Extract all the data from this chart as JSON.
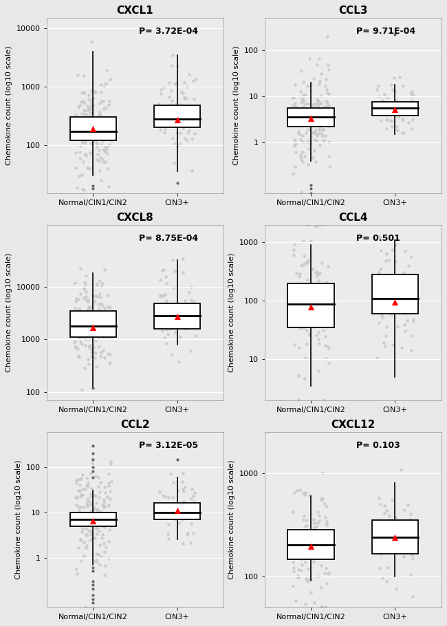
{
  "panels": [
    {
      "title": "CXCL1",
      "pvalue": "P= 3.72E-04",
      "ylim": [
        15,
        15000
      ],
      "yticks": [
        100,
        1000,
        10000
      ],
      "ytick_labels": [
        "100",
        "1000",
        "10000"
      ],
      "group1": {
        "median": 170,
        "q1": 120,
        "q3": 300,
        "whislo": 30,
        "whishi": 4000,
        "mean": 190,
        "fliers_lo": [
          20,
          18
        ],
        "fliers_hi": []
      },
      "group2": {
        "median": 280,
        "q1": 200,
        "q3": 480,
        "whislo": 35,
        "whishi": 3500,
        "mean": 270,
        "fliers_lo": [
          22
        ],
        "fliers_hi": []
      },
      "n1": 150,
      "n2": 70,
      "s1_gmean": 2.3,
      "s1_gstd": 0.45,
      "s2_gmean": 2.55,
      "s2_gstd": 0.38
    },
    {
      "title": "CCL3",
      "pvalue": "P= 9.71E-04",
      "ylim": [
        0.08,
        500
      ],
      "yticks": [
        1,
        10,
        100
      ],
      "ytick_labels": [
        "1",
        "10",
        "100"
      ],
      "group1": {
        "median": 3.5,
        "q1": 2.2,
        "q3": 5.5,
        "whislo": 0.4,
        "whishi": 20,
        "mean": 3.3,
        "fliers_lo": [
          0.1,
          0.08,
          0.12
        ],
        "fliers_hi": []
      },
      "group2": {
        "median": 5.5,
        "q1": 3.8,
        "q3": 7.5,
        "whislo": 1.5,
        "whishi": 18,
        "mean": 5.2,
        "fliers_lo": [],
        "fliers_hi": [
          220
        ]
      },
      "n1": 150,
      "n2": 70,
      "s1_gmean": 0.55,
      "s1_gstd": 0.55,
      "s2_gmean": 0.75,
      "s2_gstd": 0.32
    },
    {
      "title": "CXCL8",
      "pvalue": "P= 8.75E-04",
      "ylim": [
        70,
        150000
      ],
      "yticks": [
        100,
        1000,
        10000
      ],
      "ytick_labels": [
        "100",
        "1000",
        "10000"
      ],
      "group1": {
        "median": 1800,
        "q1": 1100,
        "q3": 3500,
        "whislo": 125,
        "whishi": 18000,
        "mean": 1700,
        "fliers_lo": [
          120
        ],
        "fliers_hi": []
      },
      "group2": {
        "median": 2800,
        "q1": 1600,
        "q3": 4800,
        "whislo": 800,
        "whishi": 32000,
        "mean": 2750,
        "fliers_lo": [],
        "fliers_hi": []
      },
      "n1": 150,
      "n2": 70,
      "s1_gmean": 3.3,
      "s1_gstd": 0.48,
      "s2_gmean": 3.5,
      "s2_gstd": 0.42
    },
    {
      "title": "CCL4",
      "pvalue": "P= 0.501",
      "ylim": [
        2,
        2000
      ],
      "yticks": [
        10,
        100,
        1000
      ],
      "ytick_labels": [
        "10",
        "100",
        "1000"
      ],
      "group1": {
        "median": 88,
        "q1": 35,
        "q3": 200,
        "whislo": 3.5,
        "whishi": 900,
        "mean": 80,
        "fliers_lo": [],
        "fliers_hi": []
      },
      "group2": {
        "median": 110,
        "q1": 60,
        "q3": 280,
        "whislo": 5,
        "whishi": 1100,
        "mean": 95,
        "fliers_lo": [],
        "fliers_hi": []
      },
      "n1": 130,
      "n2": 60,
      "s1_gmean": 1.95,
      "s1_gstd": 0.55,
      "s2_gmean": 2.05,
      "s2_gstd": 0.5
    },
    {
      "title": "CCL2",
      "pvalue": "P= 3.12E-05",
      "ylim": [
        0.08,
        600
      ],
      "yticks": [
        1,
        10,
        100
      ],
      "ytick_labels": [
        "1",
        "10",
        "100"
      ],
      "group1": {
        "median": 7,
        "q1": 5,
        "q3": 10,
        "whislo": 0.7,
        "whishi": 30,
        "mean": 6.5,
        "fliers_lo": [
          0.1,
          0.12,
          0.15,
          0.2,
          0.25,
          0.3,
          0.5,
          0.6
        ],
        "fliers_hi": [
          60,
          80,
          100,
          150,
          200,
          300
        ]
      },
      "group2": {
        "median": 10,
        "q1": 7,
        "q3": 16,
        "whislo": 2.5,
        "whishi": 60,
        "mean": 11,
        "fliers_lo": [],
        "fliers_hi": [
          150
        ]
      },
      "n1": 160,
      "n2": 65,
      "s1_gmean": 0.88,
      "s1_gstd": 0.55,
      "s2_gmean": 1.05,
      "s2_gstd": 0.38
    },
    {
      "title": "CXCL12",
      "pvalue": "P= 0.103",
      "ylim": [
        50,
        2500
      ],
      "yticks": [
        100,
        1000
      ],
      "ytick_labels": [
        "100",
        "1000"
      ],
      "group1": {
        "median": 200,
        "q1": 145,
        "q3": 280,
        "whislo": 90,
        "whishi": 600,
        "mean": 195,
        "fliers_lo": [],
        "fliers_hi": []
      },
      "group2": {
        "median": 240,
        "q1": 165,
        "q3": 350,
        "whislo": 100,
        "whishi": 800,
        "mean": 240,
        "fliers_lo": [],
        "fliers_hi": []
      },
      "n1": 100,
      "n2": 55,
      "s1_gmean": 2.28,
      "s1_gstd": 0.28,
      "s2_gmean": 2.4,
      "s2_gstd": 0.25
    }
  ],
  "bg_color": "#e8e8e8",
  "plot_bg_color": "#ebebeb",
  "box_fill": "white",
  "box_edge": "black",
  "scatter_color": "#c8c8c8",
  "mean_color": "red",
  "outlier_color": "#666666",
  "xlabel_groups": [
    "Normal/CIN1/CIN2",
    "CIN3+"
  ],
  "ylabel": "Chemokine count (log10 scale)"
}
